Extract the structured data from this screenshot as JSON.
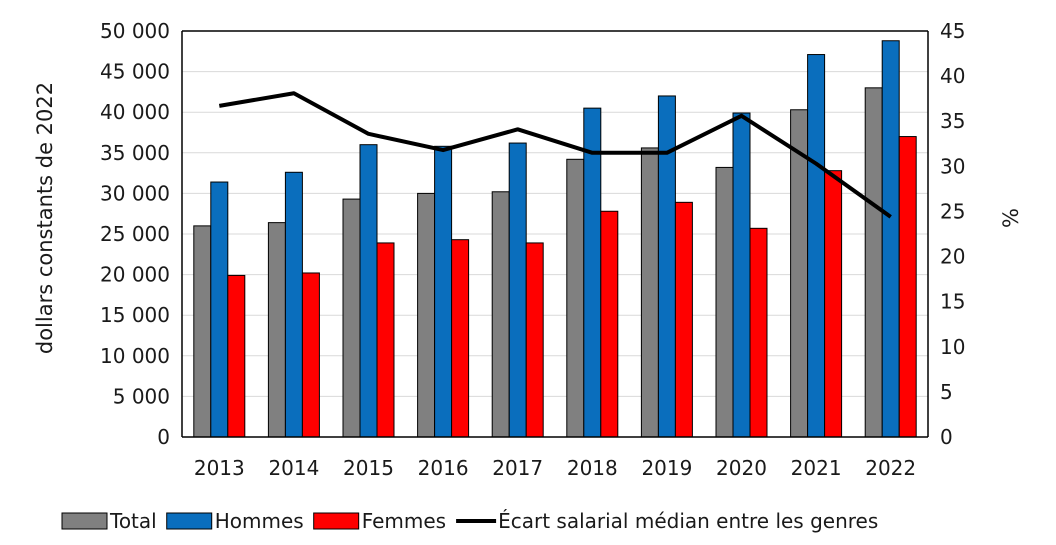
{
  "chart_data": {
    "type": "bar",
    "categories": [
      "2013",
      "2014",
      "2015",
      "2016",
      "2017",
      "2018",
      "2019",
      "2020",
      "2021",
      "2022"
    ],
    "series": [
      {
        "name": "Total",
        "axis": "left",
        "type": "bar",
        "color": "#808080",
        "values": [
          26000,
          26400,
          29300,
          30000,
          30200,
          34200,
          35600,
          33200,
          40300,
          43000
        ]
      },
      {
        "name": "Hommes",
        "axis": "left",
        "type": "bar",
        "color": "#0a6ebd",
        "values": [
          31400,
          32600,
          36000,
          35800,
          36200,
          40500,
          42000,
          39900,
          47100,
          48800
        ]
      },
      {
        "name": "Femmes",
        "axis": "left",
        "type": "bar",
        "color": "#ff0000",
        "values": [
          19900,
          20200,
          23900,
          24300,
          23900,
          27800,
          28900,
          25700,
          32800,
          37000
        ]
      },
      {
        "name": "Écart salarial médian entre les genres",
        "axis": "right",
        "type": "line",
        "color": "#000000",
        "values": [
          36.7,
          38.1,
          33.6,
          31.8,
          34.1,
          31.5,
          31.5,
          35.6,
          30.3,
          24.4
        ]
      }
    ],
    "xlabel": "",
    "ylabel": "dollars constants de 2022",
    "y2label": "%",
    "ylim": [
      0,
      50000
    ],
    "y_ticks": [
      "0",
      "5 000",
      "10 000",
      "15 000",
      "20 000",
      "25 000",
      "30 000",
      "35 000",
      "40 000",
      "45 000",
      "50 000"
    ],
    "y2lim": [
      0,
      45
    ],
    "y2_ticks": [
      "0",
      "5",
      "10",
      "15",
      "20",
      "25",
      "30",
      "35",
      "40",
      "45"
    ],
    "grid": true,
    "legend_position": "bottom"
  }
}
